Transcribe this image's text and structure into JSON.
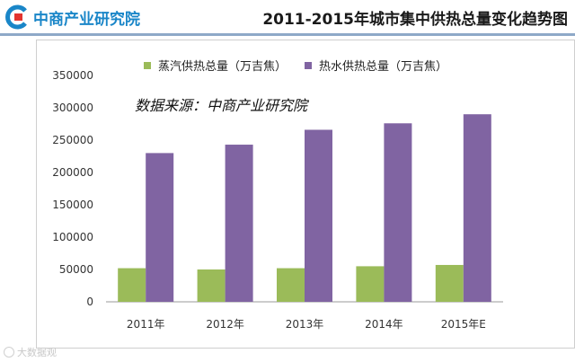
{
  "header": {
    "logo_text": "中商产业研究院",
    "title": "2011-2015年城市集中供热总量变化趋势图"
  },
  "annotation": "数据来源：中商产业研究院",
  "watermark": "大数据观",
  "colors": {
    "steam": "#9bbb59",
    "hot_water": "#8064a2",
    "brand": "#1a86c8",
    "header_line": "#8ea9c8"
  },
  "chart_data": {
    "type": "bar",
    "title": "2011-2015年城市集中供热总量变化趋势图",
    "categories": [
      "2011年",
      "2012年",
      "2013年",
      "2014年",
      "2015年E"
    ],
    "series": [
      {
        "name": "蒸汽供热总量（万吉焦）",
        "values": [
          52000,
          50000,
          52000,
          55000,
          57000
        ]
      },
      {
        "name": "热水供热总量（万吉焦）",
        "values": [
          230000,
          243000,
          266000,
          276000,
          290000
        ]
      }
    ],
    "y_ticks": [
      "0",
      "50000",
      "100000",
      "150000",
      "200000",
      "250000",
      "300000",
      "350000"
    ],
    "ylim": [
      0,
      350000
    ],
    "xlabel": "",
    "ylabel": "",
    "legend_position": "top"
  }
}
